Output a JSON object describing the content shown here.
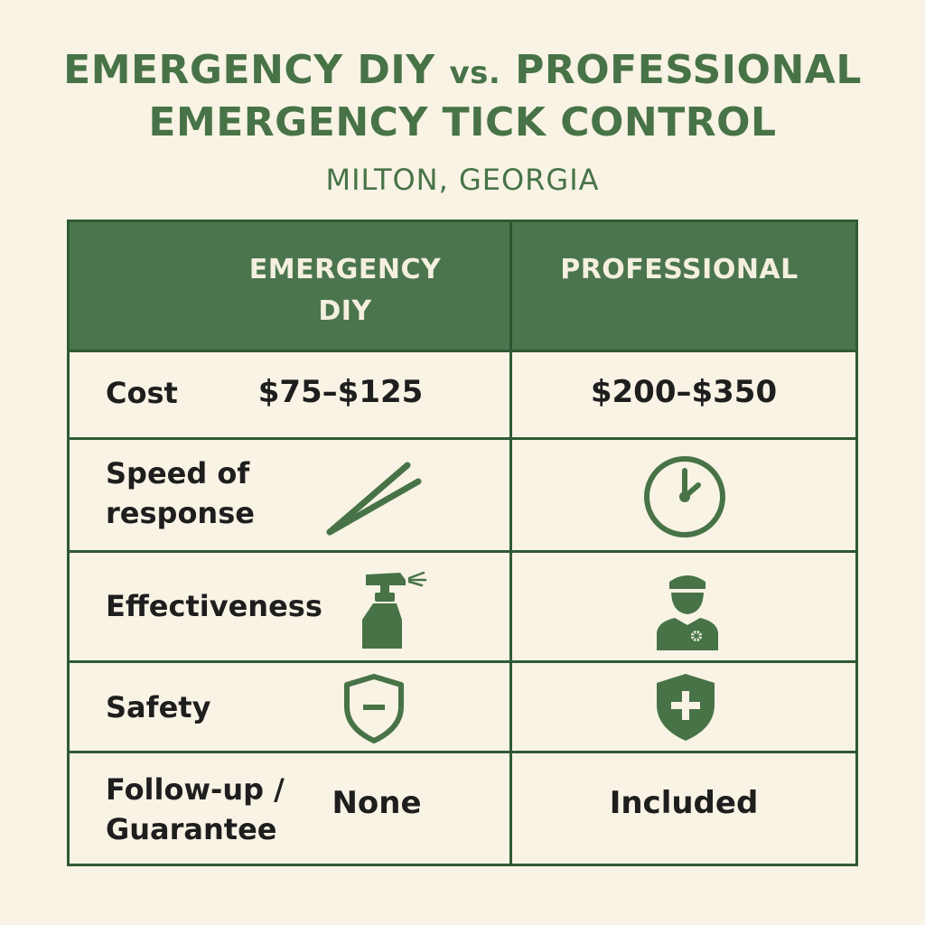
{
  "header": {
    "title_part1": "EMERGENCY DIY ",
    "title_vs": "vs.",
    "title_part2": " PROFESSIONAL",
    "title_line2": "EMERGENCY TICK CONTROL",
    "subtitle": "MILTON, GEORGIA"
  },
  "columns": {
    "diy_line1": "EMERGENCY",
    "diy_line2": "DIY",
    "professional": "PROFESSIONAL"
  },
  "rows": {
    "cost": {
      "label": "Cost",
      "diy": "$75–$125",
      "professional": "$200–$350"
    },
    "speed": {
      "label_line1": "Speed of",
      "label_line2": "response",
      "diy_icon": "tweezers-icon",
      "professional_icon": "clock-icon"
    },
    "effectiveness": {
      "label": "Effectiveness",
      "diy_icon": "spray-bottle-icon",
      "professional_icon": "technician-icon"
    },
    "safety": {
      "label": "Safety",
      "diy_icon": "shield-minus-icon",
      "professional_icon": "shield-plus-icon"
    },
    "followup": {
      "label_line1": "Follow-up /",
      "label_line2": "Guarantee",
      "diy": "None",
      "professional": "Included"
    }
  },
  "colors": {
    "accent_green": "#477347",
    "header_green": "#4b754d",
    "border_green": "#2f5a34",
    "background": "#f8f3e5"
  }
}
